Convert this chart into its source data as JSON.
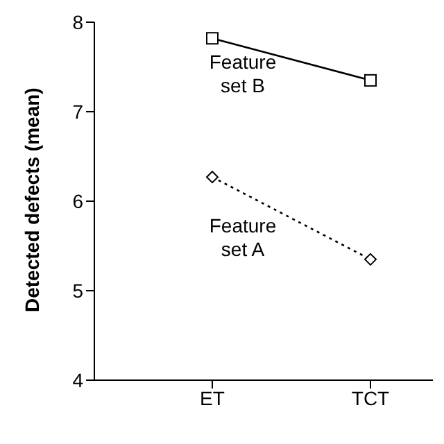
{
  "chart_data": {
    "type": "line",
    "ylabel": "Detected defects (mean)",
    "categories": [
      "ET",
      "TCT"
    ],
    "ylim": [
      4,
      8
    ],
    "yticks": [
      4,
      5,
      6,
      7,
      8
    ],
    "grid": false,
    "legend": false,
    "series": [
      {
        "name": "Feature set B",
        "color": "#000000",
        "values": [
          7.82,
          7.35
        ],
        "marker": "square",
        "line_style": "solid"
      },
      {
        "name": "Feature set A",
        "color": "#000000",
        "values": [
          6.27,
          5.35
        ],
        "marker": "diamond",
        "line_style": "dotted"
      }
    ]
  }
}
